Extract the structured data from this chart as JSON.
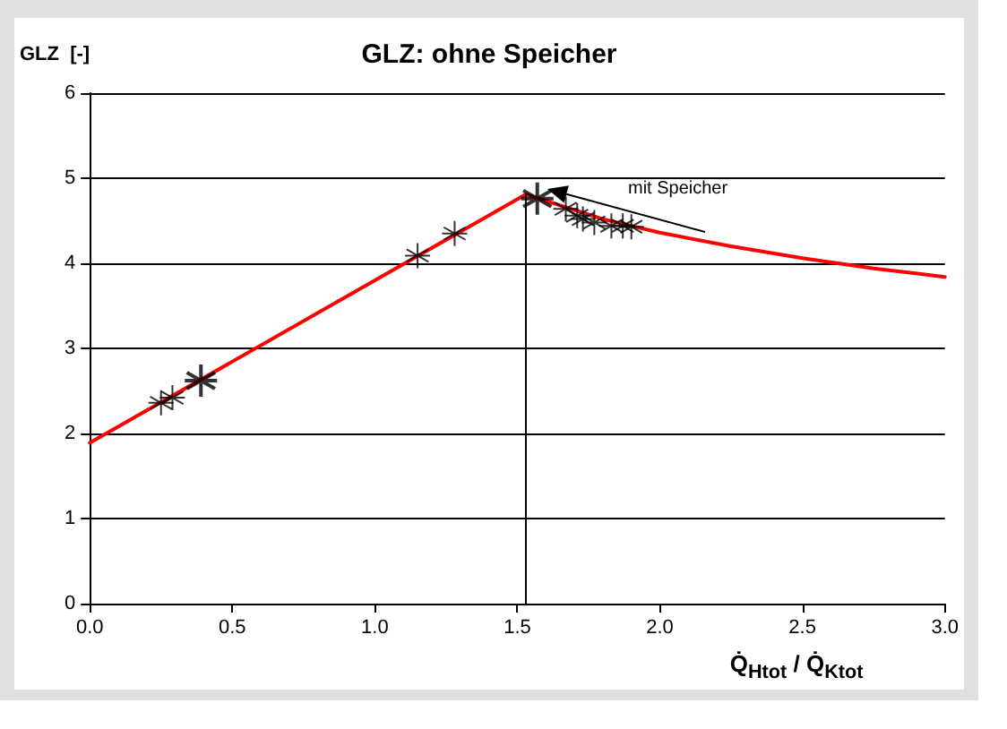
{
  "chart_data": {
    "type": "line",
    "title": "GLZ: ohne Speicher",
    "ylabel": "GLZ  [-]",
    "xlabel": "Q̇$_{Htot}$ / Q̇$_{Ktot}$",
    "xlim": [
      0,
      3.0
    ],
    "ylim": [
      0,
      6
    ],
    "xticks": [
      {
        "value": 0,
        "label": "0.0"
      },
      {
        "value": 0.5,
        "label": "0.5"
      },
      {
        "value": 1,
        "label": "1.0"
      },
      {
        "value": 1.5,
        "label": "1.5"
      },
      {
        "value": 2,
        "label": "2.0"
      },
      {
        "value": 2.5,
        "label": "2.5"
      },
      {
        "value": 3,
        "label": "3.0"
      }
    ],
    "yticks": [
      0,
      1,
      2,
      3,
      4,
      5,
      6
    ],
    "grid": "y",
    "series": [
      {
        "color": "#ff0000",
        "marker": "none",
        "line_style": "solid",
        "x": [
          0,
          1.53,
          1.8,
          2.0,
          2.25,
          2.5,
          2.75,
          3.0
        ],
        "values": [
          1.89,
          4.81,
          4.52,
          4.36,
          4.2,
          4.06,
          3.94,
          3.84
        ]
      },
      {
        "type": "scatter",
        "color": "#000000",
        "marker": "cross",
        "x": [
          0.25,
          0.29,
          1.15,
          1.28,
          1.67,
          1.71,
          1.73,
          1.77,
          1.83,
          1.87,
          1.9
        ],
        "values": [
          2.36,
          2.42,
          4.09,
          4.35,
          4.64,
          4.56,
          4.52,
          4.48,
          4.44,
          4.44,
          4.43
        ]
      },
      {
        "type": "scatter",
        "color": "#000000",
        "marker": "cross",
        "x": [
          0.39,
          1.57
        ],
        "values": [
          2.62,
          4.76
        ]
      }
    ],
    "ref_lines": [
      {
        "axis": "x",
        "value": 1.53,
        "color": "#000000"
      }
    ],
    "annotations": [
      "mit Speicher"
    ]
  }
}
